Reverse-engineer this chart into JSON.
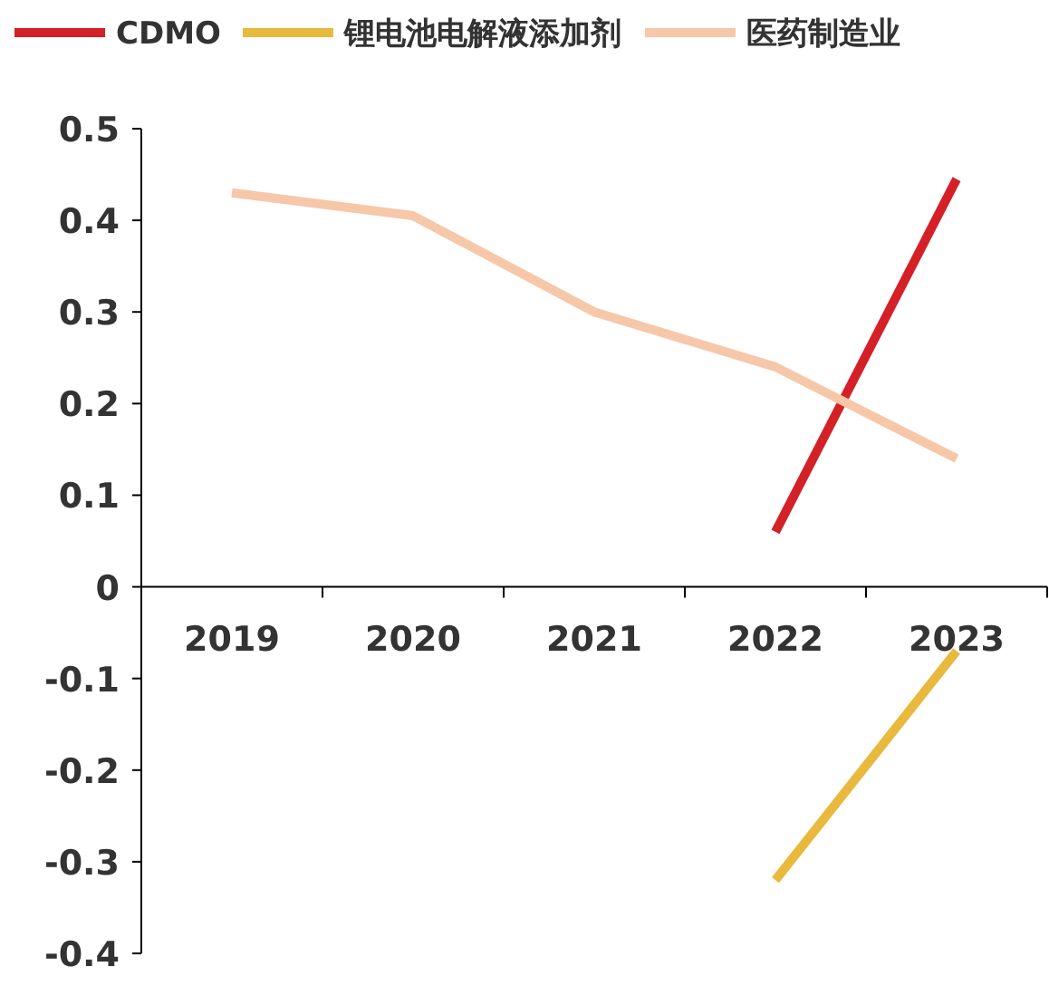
{
  "chart_data": {
    "type": "line",
    "categories": [
      "2019",
      "2020",
      "2021",
      "2022",
      "2023"
    ],
    "series": [
      {
        "name": "CDMO",
        "color": "#d42027",
        "values": [
          null,
          null,
          null,
          0.06,
          0.445
        ]
      },
      {
        "name": "锂电池电解液添加剂",
        "color": "#e8b93c",
        "values": [
          null,
          null,
          null,
          -0.32,
          -0.07
        ]
      },
      {
        "name": "医药制造业",
        "color": "#f7c7a9",
        "values": [
          0.43,
          0.405,
          0.3,
          0.24,
          0.14
        ]
      }
    ],
    "ylim": [
      -0.4,
      0.5
    ],
    "yticks": [
      -0.4,
      -0.3,
      -0.2,
      -0.1,
      0,
      0.1,
      0.2,
      0.3,
      0.4,
      0.5
    ],
    "grid": false,
    "legend": "top",
    "marker": "none",
    "line_style": "solid"
  }
}
